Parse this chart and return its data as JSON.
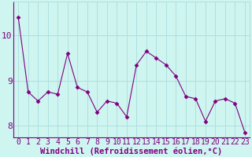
{
  "x": [
    0,
    1,
    2,
    3,
    4,
    5,
    6,
    7,
    8,
    9,
    10,
    11,
    12,
    13,
    14,
    15,
    16,
    17,
    18,
    19,
    20,
    21,
    22,
    23
  ],
  "y": [
    10.4,
    8.75,
    8.55,
    8.75,
    8.7,
    9.6,
    8.85,
    8.75,
    8.3,
    8.55,
    8.5,
    8.2,
    9.35,
    9.65,
    9.5,
    9.35,
    9.1,
    8.65,
    8.6,
    8.1,
    8.55,
    8.6,
    8.5,
    7.85
  ],
  "xlabel": "Windchill (Refroidissement éolien,°C)",
  "ylim": [
    7.75,
    10.75
  ],
  "yticks": [
    8,
    9,
    10
  ],
  "ytick_labels": [
    "8",
    "9",
    "10"
  ],
  "xlim": [
    -0.5,
    23.5
  ],
  "line_color": "#800080",
  "marker": "D",
  "marker_size": 2.5,
  "bg_color": "#cef5f0",
  "grid_color": "#aadddd",
  "font_color": "#800080",
  "font_size": 7,
  "xlabel_fontsize": 7.5
}
